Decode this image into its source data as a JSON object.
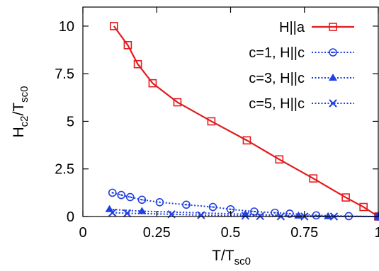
{
  "chart_data": {
    "type": "line",
    "xlabel": {
      "main": "T/T",
      "sub": "sc0"
    },
    "ylabel": {
      "main": "H",
      "sub1": "c2",
      "mid": "/T",
      "sub2": "sc0"
    },
    "xlim": [
      0,
      1
    ],
    "ylim": [
      0,
      11
    ],
    "xticks": [
      {
        "value": 0,
        "label": "0"
      },
      {
        "value": 0.25,
        "label": "0.25"
      },
      {
        "value": 0.5,
        "label": "0.5"
      },
      {
        "value": 0.75,
        "label": "0.75"
      },
      {
        "value": 1,
        "label": "1"
      }
    ],
    "yticks": [
      {
        "value": 0,
        "label": "0"
      },
      {
        "value": 2.5,
        "label": "2.5"
      },
      {
        "value": 5,
        "label": "5"
      },
      {
        "value": 7.5,
        "label": "7.5"
      },
      {
        "value": 10,
        "label": "10"
      }
    ],
    "grid": false,
    "legend_position": "top-right",
    "series": [
      {
        "name": "H||a",
        "color": "#e41a1c",
        "marker": "square",
        "line": "solid",
        "points": [
          [
            0.105,
            10
          ],
          [
            0.152,
            9
          ],
          [
            0.186,
            8
          ],
          [
            0.236,
            7
          ],
          [
            0.32,
            6
          ],
          [
            0.435,
            5
          ],
          [
            0.555,
            4
          ],
          [
            0.665,
            3
          ],
          [
            0.78,
            2
          ],
          [
            0.89,
            1
          ],
          [
            0.95,
            0.5
          ],
          [
            1.0,
            0
          ]
        ]
      },
      {
        "name": "c=1, H||c",
        "color": "#1f3fe0",
        "marker": "circle",
        "line": "dotted",
        "points": [
          [
            0.1,
            1.25
          ],
          [
            0.13,
            1.13
          ],
          [
            0.16,
            1.02
          ],
          [
            0.2,
            0.88
          ],
          [
            0.26,
            0.75
          ],
          [
            0.35,
            0.62
          ],
          [
            0.44,
            0.5
          ],
          [
            0.5,
            0.38
          ],
          [
            0.58,
            0.26
          ],
          [
            0.65,
            0.2
          ],
          [
            0.7,
            0.15
          ],
          [
            0.79,
            0.06
          ],
          [
            0.9,
            0.02
          ],
          [
            1.0,
            0
          ]
        ]
      },
      {
        "name": "c=3, H||c",
        "color": "#1f3fe0",
        "marker": "triangle",
        "line": "dotted",
        "points": [
          [
            0.09,
            0.38
          ],
          [
            0.2,
            0.28
          ],
          [
            0.55,
            0.12
          ],
          [
            0.73,
            0.04
          ],
          [
            0.83,
            0.01
          ],
          [
            1.0,
            0
          ]
        ]
      },
      {
        "name": "c=5, H||c",
        "color": "#1f3fe0",
        "marker": "cross",
        "line": "dotted",
        "points": [
          [
            0.1,
            0.2
          ],
          [
            0.15,
            0.17
          ],
          [
            0.3,
            0.12
          ],
          [
            0.4,
            0.07
          ],
          [
            0.55,
            0.04
          ],
          [
            0.6,
            0.02
          ],
          [
            0.67,
            0.01
          ],
          [
            0.75,
            0.0
          ],
          [
            0.85,
            0.0
          ],
          [
            1.0,
            0
          ]
        ]
      }
    ]
  }
}
